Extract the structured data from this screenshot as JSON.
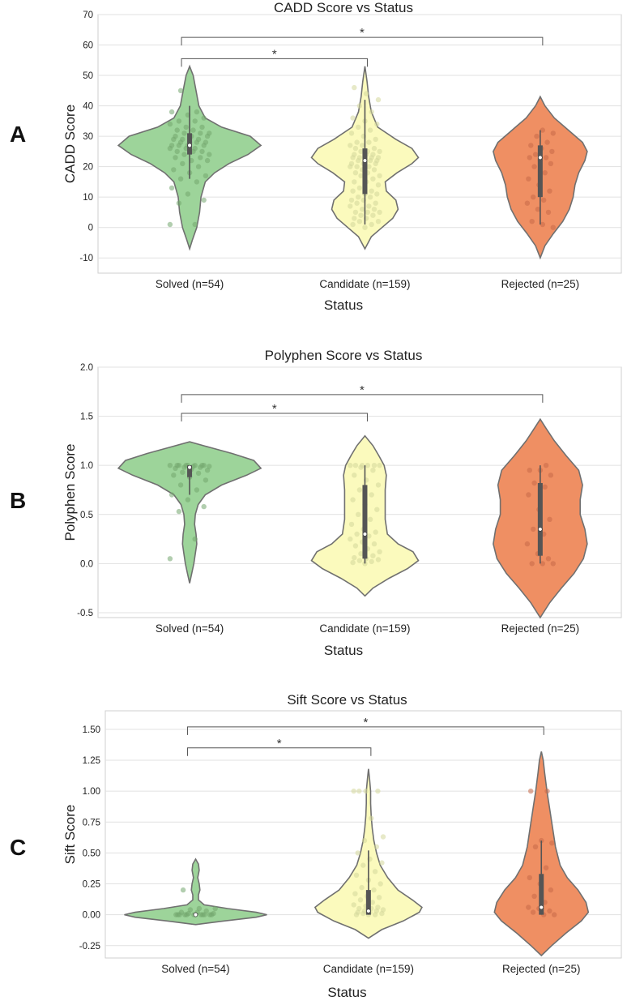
{
  "figure": {
    "panel_letters": [
      "A",
      "B",
      "C"
    ]
  },
  "colors": {
    "solved": "#9dd49a",
    "candidate": "#fbfabd",
    "rejected": "#ef8f63",
    "solved_pt": "#73a66e",
    "candidate_pt": "#d4d79a",
    "rejected_pt": "#c76a48",
    "outline": "#707070",
    "grid": "#e1e1e1",
    "frame": "#cfcfcf",
    "bracket": "#555555"
  },
  "chart_data": [
    {
      "type": "violin",
      "letter": "A",
      "title": "CADD Score vs Status",
      "xlabel": "Status",
      "ylabel": "CADD Score",
      "categories": [
        "Solved (n=54)",
        "Candidate (n=159)",
        "Rejected (n=25)"
      ],
      "ylim": [
        -15,
        70
      ],
      "yticks": [
        -10,
        0,
        10,
        20,
        30,
        40,
        50,
        60,
        70
      ],
      "ytick_labels": [
        "-10",
        "0",
        "10",
        "20",
        "30",
        "40",
        "50",
        "60",
        "70"
      ],
      "grid": true,
      "violins": [
        {
          "profile": [
            [
              -7,
              0
            ],
            [
              -4,
              0.04
            ],
            [
              0,
              0.1
            ],
            [
              5,
              0.14
            ],
            [
              10,
              0.16
            ],
            [
              15,
              0.22
            ],
            [
              18,
              0.35
            ],
            [
              21,
              0.55
            ],
            [
              24,
              0.82
            ],
            [
              27,
              1.0
            ],
            [
              30,
              0.85
            ],
            [
              33,
              0.45
            ],
            [
              36,
              0.22
            ],
            [
              40,
              0.13
            ],
            [
              45,
              0.09
            ],
            [
              50,
              0.05
            ],
            [
              53,
              0
            ]
          ],
          "median": 27,
          "q1": 24,
          "q3": 31,
          "whisker_lo": 16,
          "whisker_hi": 40,
          "points": [
            1,
            1,
            8,
            9,
            11,
            13,
            15,
            16,
            17,
            18,
            19,
            20,
            21,
            22,
            22,
            23,
            23,
            24,
            24,
            25,
            25,
            25,
            26,
            26,
            26,
            27,
            27,
            27,
            27,
            28,
            28,
            28,
            28,
            29,
            29,
            29,
            30,
            30,
            30,
            31,
            31,
            31,
            32,
            32,
            33,
            33,
            34,
            35,
            35,
            36,
            37,
            38,
            38,
            45
          ]
        },
        {
          "profile": [
            [
              -7,
              0
            ],
            [
              -3,
              0.12
            ],
            [
              0,
              0.32
            ],
            [
              3,
              0.52
            ],
            [
              6,
              0.62
            ],
            [
              9,
              0.58
            ],
            [
              12,
              0.4
            ],
            [
              15,
              0.38
            ],
            [
              18,
              0.6
            ],
            [
              21,
              0.88
            ],
            [
              23,
              1.0
            ],
            [
              26,
              0.88
            ],
            [
              29,
              0.58
            ],
            [
              33,
              0.24
            ],
            [
              38,
              0.12
            ],
            [
              43,
              0.07
            ],
            [
              48,
              0.04
            ],
            [
              53,
              0
            ]
          ],
          "median": 22,
          "q1": 11,
          "q3": 26,
          "whisker_lo": 1,
          "whisker_hi": 42,
          "points": [
            0,
            1,
            1,
            2,
            2,
            3,
            3,
            4,
            4,
            5,
            5,
            5,
            6,
            6,
            7,
            7,
            8,
            8,
            9,
            9,
            10,
            10,
            11,
            11,
            12,
            12,
            13,
            14,
            15,
            15,
            16,
            17,
            17,
            18,
            18,
            19,
            19,
            20,
            20,
            20,
            21,
            21,
            21,
            22,
            22,
            22,
            22,
            23,
            23,
            23,
            23,
            24,
            24,
            24,
            25,
            25,
            25,
            26,
            26,
            27,
            27,
            28,
            28,
            29,
            30,
            31,
            32,
            33,
            34,
            35,
            36,
            38,
            40,
            42,
            44,
            46
          ]
        },
        {
          "profile": [
            [
              -10,
              0
            ],
            [
              -6,
              0.1
            ],
            [
              -2,
              0.28
            ],
            [
              2,
              0.48
            ],
            [
              6,
              0.62
            ],
            [
              10,
              0.7
            ],
            [
              14,
              0.74
            ],
            [
              18,
              0.82
            ],
            [
              22,
              0.95
            ],
            [
              25,
              1.0
            ],
            [
              28,
              0.9
            ],
            [
              32,
              0.6
            ],
            [
              36,
              0.3
            ],
            [
              40,
              0.1
            ],
            [
              43,
              0
            ]
          ],
          "median": 23,
          "q1": 10,
          "q3": 27,
          "whisker_lo": 1,
          "whisker_hi": 32,
          "points": [
            0,
            1,
            2,
            5,
            6,
            8,
            9,
            10,
            12,
            14,
            16,
            18,
            20,
            21,
            22,
            23,
            23,
            24,
            25,
            26,
            27,
            28,
            30,
            31,
            32
          ]
        }
      ],
      "significance": [
        {
          "from": 0,
          "to": 2,
          "y": 62.5,
          "label": "*"
        },
        {
          "from": 0,
          "to": 1,
          "y": 55.5,
          "label": "*"
        }
      ]
    },
    {
      "type": "violin",
      "letter": "B",
      "title": "Polyphen Score vs Status",
      "xlabel": "Status",
      "ylabel": "Polyphen Score",
      "categories": [
        "Solved (n=54)",
        "Candidate (n=159)",
        "Rejected (n=25)"
      ],
      "ylim": [
        -0.55,
        2.0
      ],
      "yticks": [
        -0.5,
        0.0,
        0.5,
        1.0,
        1.5,
        2.0
      ],
      "ytick_labels": [
        "-0.5",
        "0.0",
        "0.5",
        "1.0",
        "1.5",
        "2.0"
      ],
      "grid": true,
      "violins": [
        {
          "profile": [
            [
              -0.2,
              0
            ],
            [
              -0.1,
              0.03
            ],
            [
              0,
              0.06
            ],
            [
              0.1,
              0.08
            ],
            [
              0.2,
              0.1
            ],
            [
              0.3,
              0.09
            ],
            [
              0.4,
              0.07
            ],
            [
              0.5,
              0.08
            ],
            [
              0.6,
              0.12
            ],
            [
              0.7,
              0.22
            ],
            [
              0.8,
              0.45
            ],
            [
              0.9,
              0.8
            ],
            [
              0.97,
              1.0
            ],
            [
              1.05,
              0.9
            ],
            [
              1.12,
              0.6
            ],
            [
              1.18,
              0.3
            ],
            [
              1.24,
              0
            ]
          ],
          "median": 0.98,
          "q1": 0.88,
          "q3": 1.0,
          "whisker_lo": 0.7,
          "whisker_hi": 1.0,
          "points": [
            0.05,
            0.25,
            0.53,
            0.58,
            0.65,
            0.7,
            0.75,
            0.8,
            0.85,
            0.88,
            0.9,
            0.92,
            0.93,
            0.95,
            0.96,
            0.97,
            0.98,
            0.98,
            0.99,
            0.99,
            1.0,
            1.0,
            1.0,
            1.0,
            1.0,
            1.0,
            1.0,
            1.0
          ]
        },
        {
          "profile": [
            [
              -0.33,
              0
            ],
            [
              -0.25,
              0.15
            ],
            [
              -0.15,
              0.45
            ],
            [
              -0.05,
              0.8
            ],
            [
              0.03,
              1.0
            ],
            [
              0.12,
              0.9
            ],
            [
              0.2,
              0.62
            ],
            [
              0.3,
              0.42
            ],
            [
              0.45,
              0.38
            ],
            [
              0.6,
              0.38
            ],
            [
              0.75,
              0.38
            ],
            [
              0.9,
              0.4
            ],
            [
              1.0,
              0.36
            ],
            [
              1.1,
              0.26
            ],
            [
              1.2,
              0.15
            ],
            [
              1.3,
              0
            ]
          ],
          "median": 0.3,
          "q1": 0.05,
          "q3": 0.8,
          "whisker_lo": 0.0,
          "whisker_hi": 1.0,
          "points": [
            0.0,
            0.01,
            0.02,
            0.03,
            0.04,
            0.05,
            0.06,
            0.08,
            0.1,
            0.12,
            0.15,
            0.18,
            0.2,
            0.22,
            0.25,
            0.28,
            0.3,
            0.32,
            0.35,
            0.4,
            0.45,
            0.5,
            0.55,
            0.6,
            0.65,
            0.7,
            0.75,
            0.8,
            0.85,
            0.9,
            0.95,
            0.98,
            1.0,
            1.0,
            1.0,
            1.0,
            1.0,
            1.0
          ]
        },
        {
          "profile": [
            [
              -0.55,
              0
            ],
            [
              -0.4,
              0.2
            ],
            [
              -0.25,
              0.45
            ],
            [
              -0.1,
              0.72
            ],
            [
              0.05,
              0.92
            ],
            [
              0.2,
              1.0
            ],
            [
              0.35,
              0.95
            ],
            [
              0.5,
              0.85
            ],
            [
              0.65,
              0.85
            ],
            [
              0.8,
              0.9
            ],
            [
              0.95,
              0.82
            ],
            [
              1.1,
              0.55
            ],
            [
              1.25,
              0.3
            ],
            [
              1.38,
              0.12
            ],
            [
              1.47,
              0
            ]
          ],
          "median": 0.35,
          "q1": 0.08,
          "q3": 0.82,
          "whisker_lo": 0.0,
          "whisker_hi": 1.0,
          "points": [
            0.0,
            0.0,
            0.0,
            0.05,
            0.1,
            0.2,
            0.3,
            0.35,
            0.45,
            0.55,
            0.7,
            0.78,
            0.82,
            0.9,
            0.95,
            0.95,
            1.0
          ]
        }
      ],
      "significance": [
        {
          "from": 0,
          "to": 2,
          "y": 1.72,
          "label": "*"
        },
        {
          "from": 0,
          "to": 1,
          "y": 1.53,
          "label": "*"
        }
      ]
    },
    {
      "type": "violin",
      "letter": "C",
      "title": "Sift Score vs Status",
      "xlabel": "Status",
      "ylabel": "Sift Score",
      "categories": [
        "Solved (n=54)",
        "Candidate (n=159)",
        "Rejected (n=25)"
      ],
      "ylim": [
        -0.35,
        1.65
      ],
      "yticks": [
        -0.25,
        0.0,
        0.25,
        0.5,
        0.75,
        1.0,
        1.25,
        1.5
      ],
      "ytick_labels": [
        "-0.25",
        "0.00",
        "0.25",
        "0.50",
        "0.75",
        "1.00",
        "1.25",
        "1.50"
      ],
      "grid": true,
      "violins": [
        {
          "profile": [
            [
              -0.08,
              0
            ],
            [
              -0.05,
              0.4
            ],
            [
              -0.02,
              0.85
            ],
            [
              0.0,
              1.0
            ],
            [
              0.02,
              0.85
            ],
            [
              0.05,
              0.45
            ],
            [
              0.08,
              0.12
            ],
            [
              0.12,
              0.04
            ],
            [
              0.16,
              0.04
            ],
            [
              0.2,
              0.06
            ],
            [
              0.25,
              0.05
            ],
            [
              0.3,
              0.03
            ],
            [
              0.36,
              0.05
            ],
            [
              0.41,
              0.04
            ],
            [
              0.45,
              0
            ]
          ],
          "median": 0.0,
          "q1": 0.0,
          "q3": 0.01,
          "whisker_lo": 0.0,
          "whisker_hi": 0.02,
          "points": [
            0.0,
            0.0,
            0.0,
            0.0,
            0.0,
            0.0,
            0.0,
            0.0,
            0.0,
            0.0,
            0.0,
            0.0,
            0.01,
            0.01,
            0.02,
            0.02,
            0.03,
            0.04,
            0.05,
            0.05,
            0.2
          ]
        },
        {
          "profile": [
            [
              -0.19,
              0
            ],
            [
              -0.12,
              0.25
            ],
            [
              -0.05,
              0.65
            ],
            [
              0.02,
              0.95
            ],
            [
              0.06,
              1.0
            ],
            [
              0.12,
              0.82
            ],
            [
              0.2,
              0.55
            ],
            [
              0.3,
              0.36
            ],
            [
              0.4,
              0.22
            ],
            [
              0.5,
              0.15
            ],
            [
              0.6,
              0.1
            ],
            [
              0.7,
              0.07
            ],
            [
              0.8,
              0.05
            ],
            [
              0.9,
              0.04
            ],
            [
              1.0,
              0.04
            ],
            [
              1.1,
              0.02
            ],
            [
              1.18,
              0
            ]
          ],
          "median": 0.03,
          "q1": 0.0,
          "q3": 0.2,
          "whisker_lo": 0.0,
          "whisker_hi": 0.52,
          "points": [
            0.0,
            0.0,
            0.0,
            0.01,
            0.01,
            0.02,
            0.02,
            0.03,
            0.03,
            0.04,
            0.05,
            0.05,
            0.06,
            0.07,
            0.08,
            0.1,
            0.12,
            0.14,
            0.15,
            0.17,
            0.2,
            0.22,
            0.25,
            0.28,
            0.32,
            0.35,
            0.4,
            0.42,
            0.45,
            0.5,
            0.55,
            0.6,
            0.63,
            0.78,
            1.0,
            1.0,
            1.0,
            1.0
          ]
        },
        {
          "profile": [
            [
              -0.33,
              0
            ],
            [
              -0.25,
              0.22
            ],
            [
              -0.15,
              0.52
            ],
            [
              -0.05,
              0.85
            ],
            [
              0.02,
              1.0
            ],
            [
              0.1,
              0.95
            ],
            [
              0.2,
              0.78
            ],
            [
              0.3,
              0.55
            ],
            [
              0.4,
              0.4
            ],
            [
              0.55,
              0.3
            ],
            [
              0.7,
              0.24
            ],
            [
              0.85,
              0.18
            ],
            [
              1.0,
              0.12
            ],
            [
              1.15,
              0.07
            ],
            [
              1.25,
              0.04
            ],
            [
              1.32,
              0
            ]
          ],
          "median": 0.06,
          "q1": 0.0,
          "q3": 0.33,
          "whisker_lo": 0.0,
          "whisker_hi": 0.6,
          "points": [
            0.0,
            0.0,
            0.02,
            0.03,
            0.05,
            0.06,
            0.1,
            0.15,
            0.2,
            0.25,
            0.3,
            0.38,
            0.55,
            0.58,
            0.6,
            1.0,
            1.0
          ]
        }
      ],
      "significance": [
        {
          "from": 0,
          "to": 2,
          "y": 1.52,
          "label": "*"
        },
        {
          "from": 0,
          "to": 1,
          "y": 1.35,
          "label": "*"
        }
      ]
    }
  ]
}
